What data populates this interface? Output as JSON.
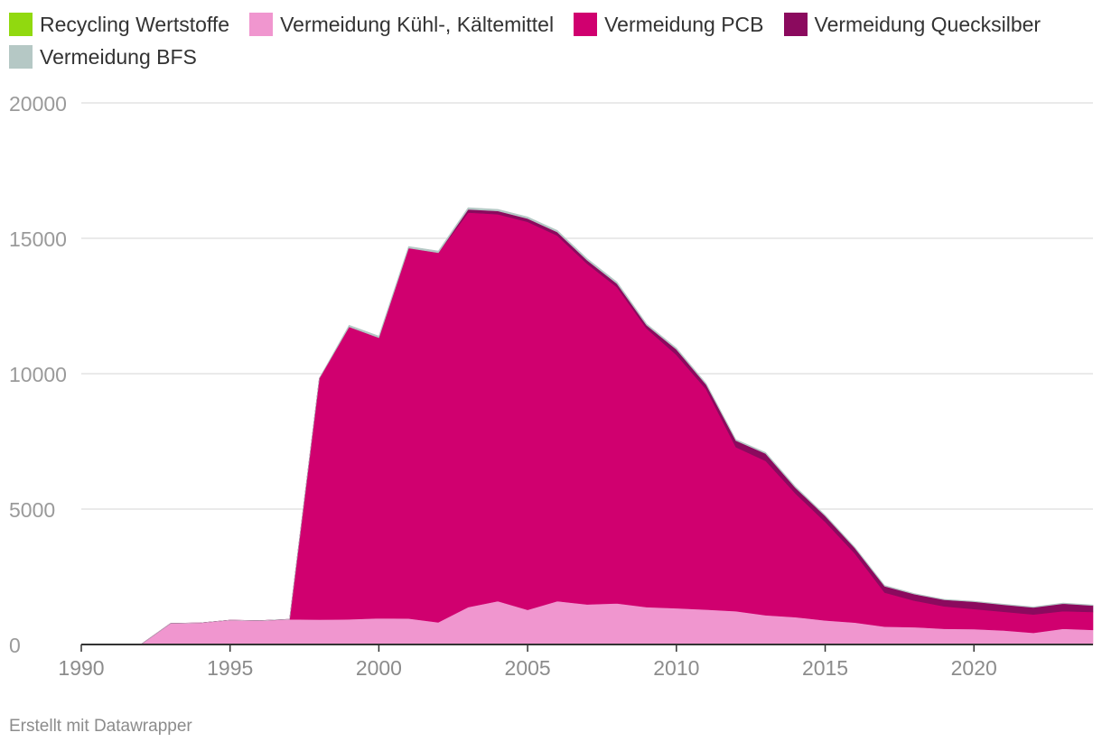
{
  "chart_data": {
    "type": "area",
    "stacked": true,
    "x": [
      1990,
      1991,
      1992,
      1993,
      1994,
      1995,
      1996,
      1997,
      1998,
      1999,
      2000,
      2001,
      2002,
      2003,
      2004,
      2005,
      2006,
      2007,
      2008,
      2009,
      2010,
      2011,
      2012,
      2013,
      2014,
      2015,
      2016,
      2017,
      2018,
      2019,
      2020,
      2021,
      2022,
      2023,
      2024
    ],
    "series": [
      {
        "name": "Recycling Wertstoffe",
        "color": "#91d90f",
        "values": [
          0,
          0,
          0,
          0,
          0,
          0,
          0,
          0,
          0,
          0,
          0,
          0,
          0,
          0,
          0,
          0,
          0,
          0,
          0,
          0,
          0,
          0,
          0,
          0,
          0,
          0,
          0,
          0,
          0,
          0,
          0,
          0,
          0,
          0,
          0
        ]
      },
      {
        "name": "Vermeidung Kühl-, Kältemittel",
        "color": "#f096cf",
        "values": [
          0,
          0,
          0,
          780,
          800,
          900,
          880,
          930,
          920,
          930,
          970,
          960,
          820,
          1380,
          1600,
          1280,
          1600,
          1480,
          1520,
          1380,
          1340,
          1290,
          1230,
          1080,
          1010,
          890,
          810,
          660,
          640,
          580,
          570,
          520,
          430,
          580,
          540
        ]
      },
      {
        "name": "Vermeidung PCB",
        "color": "#d0006f",
        "values": [
          0,
          0,
          0,
          0,
          0,
          0,
          0,
          0,
          8910,
          10800,
          10360,
          13680,
          13650,
          14570,
          14290,
          14330,
          13500,
          12580,
          11680,
          10290,
          9360,
          8140,
          6060,
          5700,
          4570,
          3640,
          2550,
          1260,
          980,
          830,
          740,
          690,
          680,
          650,
          660
        ]
      },
      {
        "name": "Vermeidung Quecksilber",
        "color": "#8b0a5e",
        "values": [
          0,
          0,
          0,
          0,
          0,
          0,
          0,
          0,
          0,
          0,
          0,
          0,
          0,
          120,
          120,
          120,
          130,
          130,
          130,
          120,
          200,
          170,
          240,
          270,
          210,
          220,
          200,
          230,
          240,
          240,
          270,
          260,
          260,
          280,
          240
        ]
      },
      {
        "name": "Vermeidung BFS",
        "color": "#b5c8c5",
        "values": [
          0,
          0,
          0,
          0,
          0,
          0,
          0,
          0,
          0,
          60,
          60,
          60,
          60,
          60,
          60,
          60,
          60,
          60,
          60,
          50,
          50,
          40,
          40,
          40,
          40,
          30,
          30,
          30,
          20,
          20,
          20,
          20,
          20,
          20,
          20
        ]
      }
    ],
    "xlim": [
      1990,
      2024
    ],
    "ylim": [
      0,
      20000
    ],
    "xticks": [
      1990,
      1995,
      2000,
      2005,
      2010,
      2015,
      2020
    ],
    "yticks": [
      0,
      5000,
      10000,
      15000,
      20000
    ],
    "grid": "horizontal",
    "legend_position": "top-left",
    "title": "",
    "xlabel": "",
    "ylabel": ""
  },
  "styles": {
    "grid_color": "#e4e4e4",
    "axis_color": "#333333",
    "tick_label_color": "#9a9a9a",
    "x_tick_label_color": "#8c8c8c"
  },
  "footer": {
    "credit": "Erstellt mit Datawrapper"
  }
}
